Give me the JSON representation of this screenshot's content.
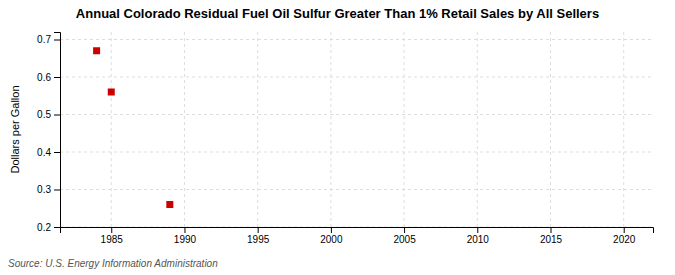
{
  "chart_data": {
    "type": "scatter",
    "title": "Annual Colorado Residual Fuel Oil Sulfur Greater Than 1% Retail Sales by All Sellers",
    "ylabel": "Dollars per Gallon",
    "source": "Source: U.S. Energy Information Administration",
    "x": [
      1984,
      1985,
      1989
    ],
    "values": [
      0.67,
      0.56,
      0.26
    ],
    "color": "#cc0000",
    "marker": "square",
    "xlim": [
      1981.5,
      2022
    ],
    "ylim": [
      0.2,
      0.72
    ],
    "xticks": [
      1985,
      1990,
      1995,
      2000,
      2005,
      2010,
      2015,
      2020
    ],
    "yticks": [
      0.2,
      0.3,
      0.4,
      0.5,
      0.6,
      0.7
    ],
    "grid": true
  }
}
